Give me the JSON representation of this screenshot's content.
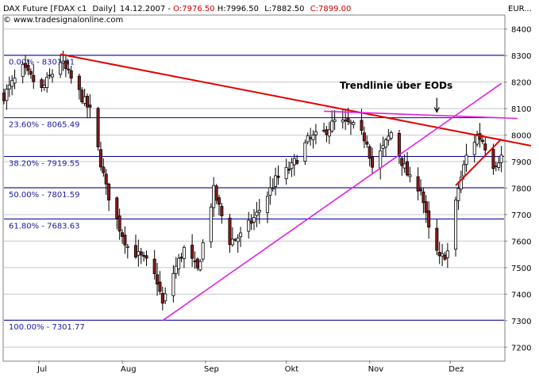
{
  "header": {
    "symbol": "DAX Future [FDAX c1",
    "interval": "Daily]",
    "date": "14.12.2007",
    "open": "O:7976.50",
    "high": "H:7996.50",
    "low": "L:7882.50",
    "close": "C:7899.00",
    "copyright": "© www.tradesignalonline.com",
    "currency": "EUR..."
  },
  "colors": {
    "up": "#ffffff",
    "down": "#8b1a1a",
    "wick": "#000000",
    "fib": "#0000a0",
    "trend_red": "#e00000",
    "trend_magenta": "#e020e0",
    "grid": "#c8c8c8",
    "annotation": "#000000"
  },
  "chart_data": {
    "type": "candlestick",
    "y_axis": {
      "min": 7150,
      "max": 8450,
      "ticks": [
        7200,
        7300,
        7400,
        7500,
        7600,
        7700,
        7800,
        7900,
        8000,
        8100,
        8200,
        8300,
        8400
      ],
      "side": "right"
    },
    "x_axis": {
      "labels": [
        "Jul",
        "Aug",
        "Sep",
        "Okt",
        "Nov",
        "Dez"
      ],
      "start": "2007-06-18",
      "end": "2007-12-21"
    },
    "grid": true,
    "fib_levels": [
      {
        "label": "0.00% - 8301.41",
        "value": 8301.41
      },
      {
        "label": "23.60% - 8065.49",
        "value": 8065.49
      },
      {
        "label": "38.20% - 7919.55",
        "value": 7919.55
      },
      {
        "label": "50.00% - 7801.59",
        "value": 7801.59
      },
      {
        "label": "61.80% - 7683.63",
        "value": 7683.63
      },
      {
        "label": "100.00% - 7301.77",
        "value": 7301.77
      }
    ],
    "trendlines": [
      {
        "color": "red",
        "from": [
          "2007-07-09",
          8305
        ],
        "to": [
          "2007-12-31",
          7960
        ]
      },
      {
        "color": "magenta",
        "from": [
          "2007-08-16",
          7300
        ],
        "to": [
          "2007-12-20",
          8195
        ]
      },
      {
        "color": "magenta",
        "from": [
          "2007-10-15",
          8090
        ],
        "to": [
          "2007-12-26",
          8063
        ]
      },
      {
        "color": "red",
        "from": [
          "2007-12-03",
          7810
        ],
        "to": [
          "2007-12-20",
          7985
        ]
      }
    ],
    "annotation": {
      "text": "Trendlinie über EODs",
      "arrow_to": [
        "2007-11-26",
        8075
      ]
    },
    "anchors": [
      [
        "2007-06-18",
        8150
      ],
      [
        "2007-06-25",
        8250
      ],
      [
        "2007-07-02",
        8170
      ],
      [
        "2007-07-09",
        8280
      ],
      [
        "2007-07-16",
        8160
      ],
      [
        "2007-07-20",
        8090
      ],
      [
        "2007-07-26",
        7800
      ],
      [
        "2007-07-31",
        7650
      ],
      [
        "2007-08-03",
        7580
      ],
      [
        "2007-08-10",
        7520
      ],
      [
        "2007-08-14",
        7450
      ],
      [
        "2007-08-16",
        7360
      ],
      [
        "2007-08-20",
        7480
      ],
      [
        "2007-08-24",
        7570
      ],
      [
        "2007-08-29",
        7490
      ],
      [
        "2007-09-04",
        7790
      ],
      [
        "2007-09-10",
        7600
      ],
      [
        "2007-09-14",
        7620
      ],
      [
        "2007-09-20",
        7700
      ],
      [
        "2007-09-27",
        7830
      ],
      [
        "2007-10-03",
        7880
      ],
      [
        "2007-10-09",
        7980
      ],
      [
        "2007-10-15",
        8010
      ],
      [
        "2007-10-19",
        8050
      ],
      [
        "2007-10-25",
        8040
      ],
      [
        "2007-10-31",
        7980
      ],
      [
        "2007-11-02",
        7880
      ],
      [
        "2007-11-06",
        7950
      ],
      [
        "2007-11-09",
        8010
      ],
      [
        "2007-11-13",
        7900
      ],
      [
        "2007-11-16",
        7830
      ],
      [
        "2007-11-20",
        7800
      ],
      [
        "2007-11-23",
        7640
      ],
      [
        "2007-11-27",
        7530
      ],
      [
        "2007-11-30",
        7560
      ],
      [
        "2007-12-04",
        7800
      ],
      [
        "2007-12-07",
        7920
      ],
      [
        "2007-12-11",
        8000
      ],
      [
        "2007-12-13",
        7980
      ],
      [
        "2007-12-17",
        7890
      ],
      [
        "2007-12-20",
        7920
      ]
    ]
  }
}
